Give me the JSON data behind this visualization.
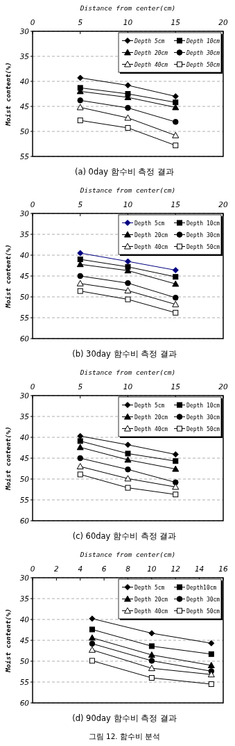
{
  "chart_data": [
    {
      "type": "line",
      "title": "(a) 0day 함수비 측정 결과",
      "xlabel": "Distance from center(cm)",
      "ylabel": "Moist content(%)",
      "xlim": [
        0,
        20
      ],
      "xticks": [
        0,
        5,
        10,
        15,
        20
      ],
      "ylim": [
        55,
        30
      ],
      "yticks": [
        30,
        35,
        40,
        45,
        50,
        55
      ],
      "grid": "y",
      "legend": "top right",
      "line_style": "solid",
      "x": [
        5,
        10,
        15
      ],
      "series": [
        {
          "name": "Depth 5cm",
          "color": "#000000",
          "marker": "diamond",
          "values": [
            39.3,
            40.8,
            43.0
          ]
        },
        {
          "name": "Depth 10cm",
          "color": "#000000",
          "marker": "square",
          "values": [
            41.3,
            42.5,
            44.2
          ]
        },
        {
          "name": "Depth 20cm",
          "color": "#000000",
          "marker": "triangle",
          "values": [
            42.0,
            43.2,
            45.2
          ]
        },
        {
          "name": "Depth 30cm",
          "color": "#000000",
          "marker": "circle",
          "values": [
            43.8,
            45.3,
            48.1
          ]
        },
        {
          "name": "Depth 40cm",
          "color": "#000000",
          "marker": "triangle",
          "values": [
            45.2,
            47.3,
            50.8
          ]
        },
        {
          "name": "Depth 50cm",
          "color": "#000000",
          "marker": "square",
          "values": [
            47.8,
            49.3,
            52.8
          ]
        }
      ]
    },
    {
      "type": "line",
      "title": "(b) 30day 함수비 측정 결과",
      "xlabel": "Distance from center(cm)",
      "ylabel": "Moist content(%)",
      "xlim": [
        0,
        20
      ],
      "xticks": [
        0,
        5,
        10,
        15,
        20
      ],
      "ylim": [
        60,
        30
      ],
      "yticks": [
        30,
        35,
        40,
        45,
        50,
        55,
        60
      ],
      "grid": "y",
      "legend": "top right",
      "line_style": "solid",
      "x": [
        5,
        10,
        15
      ],
      "series": [
        {
          "name": "Depth 5cm",
          "color": "#000080",
          "marker": "diamond",
          "values": [
            39.5,
            41.5,
            43.6
          ]
        },
        {
          "name": "Depth 10cm",
          "color": "#000000",
          "marker": "square",
          "values": [
            41.0,
            42.8,
            45.2
          ]
        },
        {
          "name": "Depth 20cm",
          "color": "#000000",
          "marker": "triangle",
          "values": [
            42.2,
            43.7,
            46.9
          ]
        },
        {
          "name": "Depth 30cm",
          "color": "#000000",
          "marker": "circle",
          "values": [
            45.0,
            46.7,
            50.2
          ]
        },
        {
          "name": "Depth 40cm",
          "color": "#000000",
          "marker": "triangle",
          "values": [
            46.8,
            48.5,
            51.8
          ]
        },
        {
          "name": "Depth 50cm",
          "color": "#000000",
          "marker": "square",
          "values": [
            48.6,
            50.6,
            53.8
          ]
        }
      ]
    },
    {
      "type": "line",
      "title": "(c) 60day 함수비 측정 결과",
      "xlabel": "Distance from center(cm)",
      "ylabel": "Moist content(%)",
      "xlim": [
        0,
        20
      ],
      "xticks": [
        0,
        5,
        10,
        15,
        20
      ],
      "ylim": [
        60,
        30
      ],
      "yticks": [
        30,
        35,
        40,
        45,
        50,
        55,
        60
      ],
      "grid": "y",
      "legend": "top right",
      "line_style": "solid",
      "x": [
        5,
        10,
        15
      ],
      "series": [
        {
          "name": "Depth 5cm",
          "color": "#000000",
          "marker": "diamond",
          "values": [
            39.7,
            41.8,
            44.1
          ]
        },
        {
          "name": "Depth 10cm",
          "color": "#000000",
          "marker": "square",
          "values": [
            40.9,
            43.9,
            45.7
          ]
        },
        {
          "name": "Depth 20cm",
          "color": "#000000",
          "marker": "triangle",
          "values": [
            42.4,
            45.4,
            47.6
          ]
        },
        {
          "name": "Depth 30cm",
          "color": "#000000",
          "marker": "circle",
          "values": [
            45.0,
            47.7,
            50.8
          ]
        },
        {
          "name": "Depth 40cm",
          "color": "#000000",
          "marker": "triangle",
          "values": [
            47.0,
            49.9,
            51.9
          ]
        },
        {
          "name": "Depth 50cm",
          "color": "#000000",
          "marker": "square",
          "values": [
            48.9,
            52.1,
            53.7
          ]
        }
      ]
    },
    {
      "type": "line",
      "title": "(d) 90day 함수비 측정 결과",
      "xlabel": "Distance from center(cm)",
      "ylabel": "Moist content(%)",
      "xlim": [
        0,
        16
      ],
      "xticks": [
        0,
        2,
        4,
        6,
        8,
        10,
        12,
        14,
        16
      ],
      "ylim": [
        60,
        30
      ],
      "yticks": [
        30,
        35,
        40,
        45,
        50,
        55,
        60
      ],
      "grid": "y",
      "legend": "top right",
      "line_style": "solid",
      "x": [
        5,
        10,
        15
      ],
      "annotations": [
        "그림 12. 함수비 분석"
      ],
      "series": [
        {
          "name": "Depth 5cm",
          "color": "#000000",
          "marker": "diamond",
          "values": [
            39.8,
            43.3,
            45.7
          ]
        },
        {
          "name": "Depth10cm",
          "color": "#000000",
          "marker": "square",
          "values": [
            42.4,
            46.4,
            48.3
          ]
        },
        {
          "name": "Depth 20cm",
          "color": "#000000",
          "marker": "triangle",
          "values": [
            44.4,
            48.5,
            51.0
          ]
        },
        {
          "name": "Depth 30cm",
          "color": "#000000",
          "marker": "circle",
          "values": [
            45.8,
            49.9,
            52.4
          ]
        },
        {
          "name": "Depth 40cm",
          "color": "#000000",
          "marker": "triangle",
          "values": [
            47.3,
            51.7,
            53.2
          ]
        },
        {
          "name": "Depth 50cm",
          "color": "#000000",
          "marker": "square",
          "values": [
            49.9,
            54.0,
            55.5
          ]
        }
      ]
    }
  ]
}
